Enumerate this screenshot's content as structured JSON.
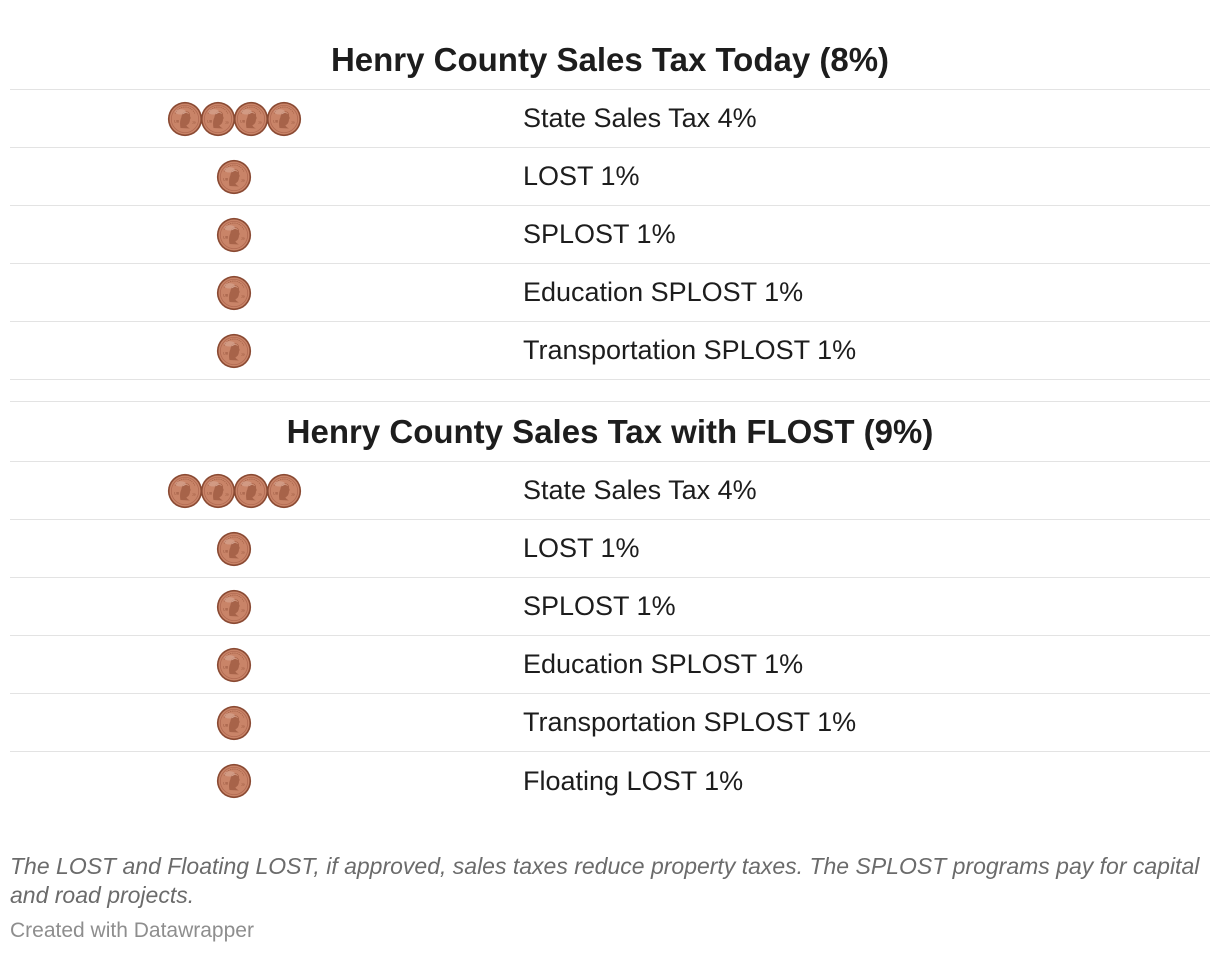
{
  "chart_data": {
    "type": "table",
    "tables": [
      {
        "title": "Henry County Sales Tax Today (8%)",
        "rows": [
          {
            "label": "State Sales Tax 4%",
            "pennies": 4
          },
          {
            "label": "LOST 1%",
            "pennies": 1
          },
          {
            "label": "SPLOST 1%",
            "pennies": 1
          },
          {
            "label": "Education SPLOST 1%",
            "pennies": 1
          },
          {
            "label": "Transportation SPLOST 1%",
            "pennies": 1
          }
        ]
      },
      {
        "title": "Henry County Sales Tax with FLOST (9%)",
        "rows": [
          {
            "label": "State Sales Tax 4%",
            "pennies": 4
          },
          {
            "label": "LOST 1%",
            "pennies": 1
          },
          {
            "label": "SPLOST 1%",
            "pennies": 1
          },
          {
            "label": "Education SPLOST 1%",
            "pennies": 1
          },
          {
            "label": "Transportation SPLOST 1%",
            "pennies": 1
          },
          {
            "label": "Floating LOST 1%",
            "pennies": 1
          }
        ]
      }
    ],
    "icon": "penny-icon",
    "colors": {
      "coin": "#c98468",
      "coin_rim": "#8a4a33",
      "text": "#1d1d1d",
      "notes": "#6b6b6b",
      "credit": "#8e8e8e",
      "rule": "#e3e3e3"
    }
  },
  "notes": "The LOST and Floating LOST, if approved, sales taxes reduce property taxes. The SPLOST programs pay for capital and road projects.",
  "credit": "Created with Datawrapper"
}
